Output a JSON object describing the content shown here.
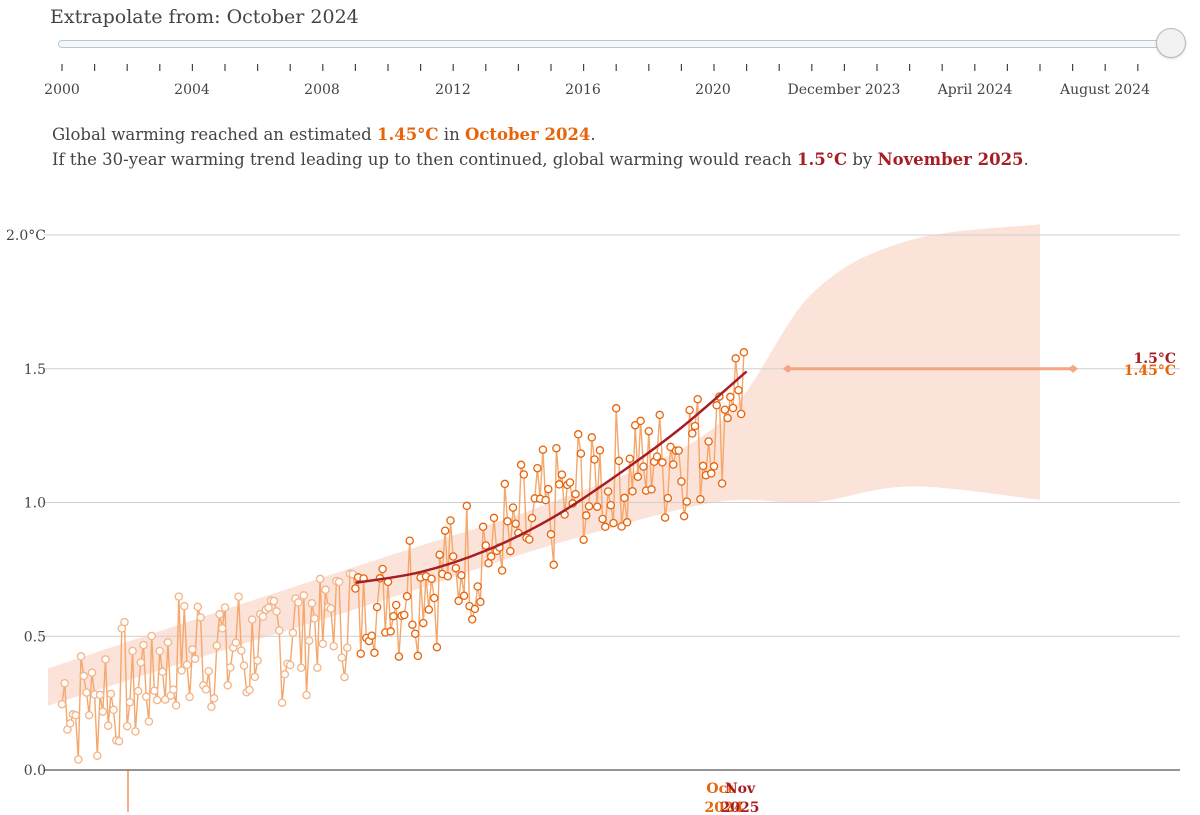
{
  "header": {
    "title": "Extrapolate from: October 2024",
    "slider_labels": [
      "2000",
      "2004",
      "2008",
      "2012",
      "2016",
      "2020",
      "December 2023",
      "April 2024",
      "August 2024"
    ]
  },
  "summary": {
    "line1_prefix": "Global warming reached an estimated ",
    "line1_value": "1.45°C",
    "line1_mid": " in ",
    "line1_date": "October 2024",
    "line1_suffix": ".",
    "line2_prefix": "If the 30-year warming trend leading up to then continued, global warming would reach ",
    "line2_value": "1.5°C",
    "line2_mid": " by ",
    "line2_date": "November 2025",
    "line2_suffix": "."
  },
  "colors": {
    "accent_orange": "#e8640a",
    "point_line": "#f5a76c",
    "trend_red": "#a61e23",
    "band_fill": "#fbd9cc",
    "target_line": "#f4a582"
  },
  "chart_data": {
    "type": "line",
    "ylim": [
      0,
      2.0
    ],
    "y_ticks": [
      {
        "value": 0,
        "label": "0.0"
      },
      {
        "value": 0.5,
        "label": "0.5"
      },
      {
        "value": 1.0,
        "label": "1.0"
      },
      {
        "value": 1.5,
        "label": "1.5"
      },
      {
        "value": 2.0,
        "label": "2.0°C"
      }
    ],
    "monthly_anomaly_anchors": [
      {
        "year": 2000.0,
        "value": 0.25
      },
      {
        "year": 2002.0,
        "value": 0.3
      },
      {
        "year": 2004.0,
        "value": 0.45
      },
      {
        "year": 2006.0,
        "value": 0.45
      },
      {
        "year": 2008.0,
        "value": 0.55
      },
      {
        "year": 2010.0,
        "value": 0.65
      },
      {
        "year": 2012.0,
        "value": 0.75
      },
      {
        "year": 2014.0,
        "value": 0.88
      },
      {
        "year": 2016.0,
        "value": 1.05
      },
      {
        "year": 2018.0,
        "value": 1.15
      },
      {
        "year": 2020.0,
        "value": 1.25
      },
      {
        "year": 2021.0,
        "value": 1.55
      }
    ],
    "trend_curve": [
      {
        "year": 2009.0,
        "value": 0.7
      },
      {
        "year": 2011.0,
        "value": 0.74
      },
      {
        "year": 2013.0,
        "value": 0.82
      },
      {
        "year": 2015.0,
        "value": 0.94
      },
      {
        "year": 2017.0,
        "value": 1.1
      },
      {
        "year": 2019.0,
        "value": 1.28
      },
      {
        "year": 2021.0,
        "value": 1.49
      }
    ],
    "uncertainty_band": [
      {
        "year": 2000.0,
        "lower": 0.24,
        "upper": 0.38
      },
      {
        "year": 2005.0,
        "lower": 0.45,
        "upper": 0.6
      },
      {
        "year": 2010.0,
        "lower": 0.64,
        "upper": 0.8
      },
      {
        "year": 2015.0,
        "lower": 0.84,
        "upper": 1.0
      },
      {
        "year": 2020.0,
        "lower": 1.0,
        "upper": 1.28
      },
      {
        "year": 2023.0,
        "lower": 1.0,
        "upper": 1.78
      },
      {
        "year": 2026.0,
        "lower": 1.06,
        "upper": 1.98
      },
      {
        "year": 2030.0,
        "lower": 1.01,
        "upper": 2.04
      }
    ],
    "target_line": {
      "value": 1.5,
      "from": "December 2023",
      "to": "August 2024"
    },
    "annotations": {
      "target_label": "1.5°C",
      "current_label": "1.45°C",
      "x_marker_month_1": "Oct",
      "x_marker_month_2": "Nov",
      "x_marker_year_1": "2024",
      "x_marker_year_2": "2025"
    }
  }
}
